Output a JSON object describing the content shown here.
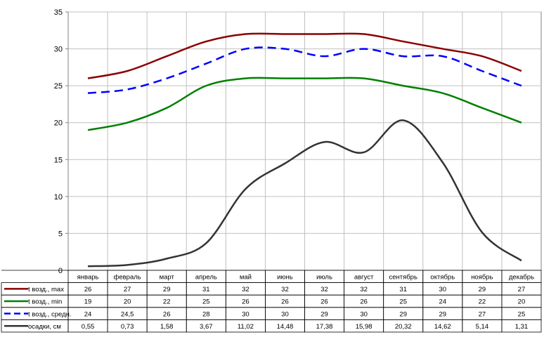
{
  "chart_data": {
    "type": "line",
    "title": "",
    "xlabel": "",
    "ylabel": "",
    "ylim": [
      0,
      35
    ],
    "yticks": [
      0,
      5,
      10,
      15,
      20,
      25,
      30,
      35
    ],
    "grid": true,
    "legend": "data-table-left",
    "categories": [
      "январь",
      "февраль",
      "март",
      "апрель",
      "май",
      "июнь",
      "июль",
      "август",
      "сентябрь",
      "октябрь",
      "ноябрь",
      "декабрь"
    ],
    "series": [
      {
        "name": "t возд., max",
        "color": "#8b0000",
        "dash": "solid",
        "values": [
          26,
          27,
          29,
          31,
          32,
          32,
          32,
          32,
          31,
          30,
          29,
          27
        ],
        "labels": [
          "26",
          "27",
          "29",
          "31",
          "32",
          "32",
          "32",
          "32",
          "31",
          "30",
          "29",
          "27"
        ]
      },
      {
        "name": "t возд., min",
        "color": "#008000",
        "dash": "solid",
        "values": [
          19,
          20,
          22,
          25,
          26,
          26,
          26,
          26,
          25,
          24,
          22,
          20
        ],
        "labels": [
          "19",
          "20",
          "22",
          "25",
          "26",
          "26",
          "26",
          "26",
          "25",
          "24",
          "22",
          "20"
        ]
      },
      {
        "name": "t возд., средн.",
        "color": "#0000ff",
        "dash": "dashed",
        "values": [
          24,
          24.5,
          26,
          28,
          30,
          30,
          29,
          30,
          29,
          29,
          27,
          25
        ],
        "labels": [
          "24",
          "24,5",
          "26",
          "28",
          "30",
          "30",
          "29",
          "30",
          "29",
          "29",
          "27",
          "25"
        ]
      },
      {
        "name": "осадки, см",
        "color": "#333333",
        "dash": "solid",
        "values": [
          0.55,
          0.73,
          1.58,
          3.67,
          11.02,
          14.48,
          17.38,
          15.98,
          20.32,
          14.62,
          5.14,
          1.31
        ],
        "labels": [
          "0,55",
          "0,73",
          "1,58",
          "3,67",
          "11,02",
          "14,48",
          "17,38",
          "15,98",
          "20,32",
          "14,62",
          "5,14",
          "1,31"
        ]
      }
    ]
  }
}
